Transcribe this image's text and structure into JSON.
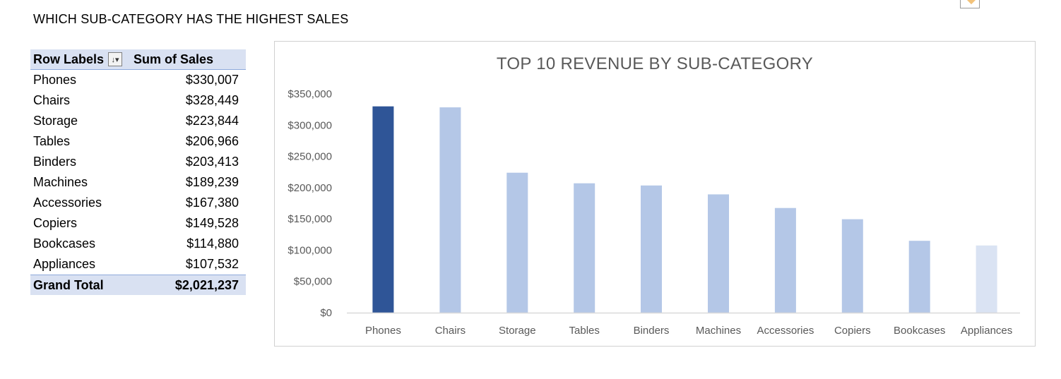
{
  "heading": "WHICH SUB-CATEGORY HAS THE HIGHEST SALES",
  "pivot": {
    "header_labels": "Row Labels",
    "header_values": "Sum of Sales",
    "rows": [
      {
        "label": "Phones",
        "value": "$330,007"
      },
      {
        "label": "Chairs",
        "value": "$328,449"
      },
      {
        "label": "Storage",
        "value": "$223,844"
      },
      {
        "label": "Tables",
        "value": "$206,966"
      },
      {
        "label": "Binders",
        "value": "$203,413"
      },
      {
        "label": "Machines",
        "value": "$189,239"
      },
      {
        "label": "Accessories",
        "value": "$167,380"
      },
      {
        "label": "Copiers",
        "value": "$149,528"
      },
      {
        "label": "Bookcases",
        "value": "$114,880"
      },
      {
        "label": "Appliances",
        "value": "$107,532"
      }
    ],
    "total_label": "Grand Total",
    "total_value": "$2,021,237",
    "filter_icon": "sort-filter-icon",
    "header_bg": "#d9e1f2"
  },
  "chart_data": {
    "type": "bar",
    "title": "TOP 10 REVENUE BY SUB-CATEGORY",
    "xlabel": "",
    "ylabel": "",
    "categories": [
      "Phones",
      "Chairs",
      "Storage",
      "Tables",
      "Binders",
      "Machines",
      "Accessories",
      "Copiers",
      "Bookcases",
      "Appliances"
    ],
    "values": [
      330007,
      328449,
      223844,
      206966,
      203413,
      189239,
      167380,
      149528,
      114880,
      107532
    ],
    "ylim": [
      0,
      350000
    ],
    "yticks": [
      0,
      50000,
      100000,
      150000,
      200000,
      250000,
      300000,
      350000
    ],
    "ytick_labels": [
      "$0",
      "$50,000",
      "$100,000",
      "$150,000",
      "$200,000",
      "$250,000",
      "$300,000",
      "$350,000"
    ],
    "grid": false,
    "legend": "none",
    "colors": {
      "highlight": "#2f5597",
      "normal": "#b4c7e7",
      "light": "#dae3f3"
    },
    "bar_colors": [
      "highlight",
      "normal",
      "normal",
      "normal",
      "normal",
      "normal",
      "normal",
      "normal",
      "normal",
      "light"
    ]
  }
}
